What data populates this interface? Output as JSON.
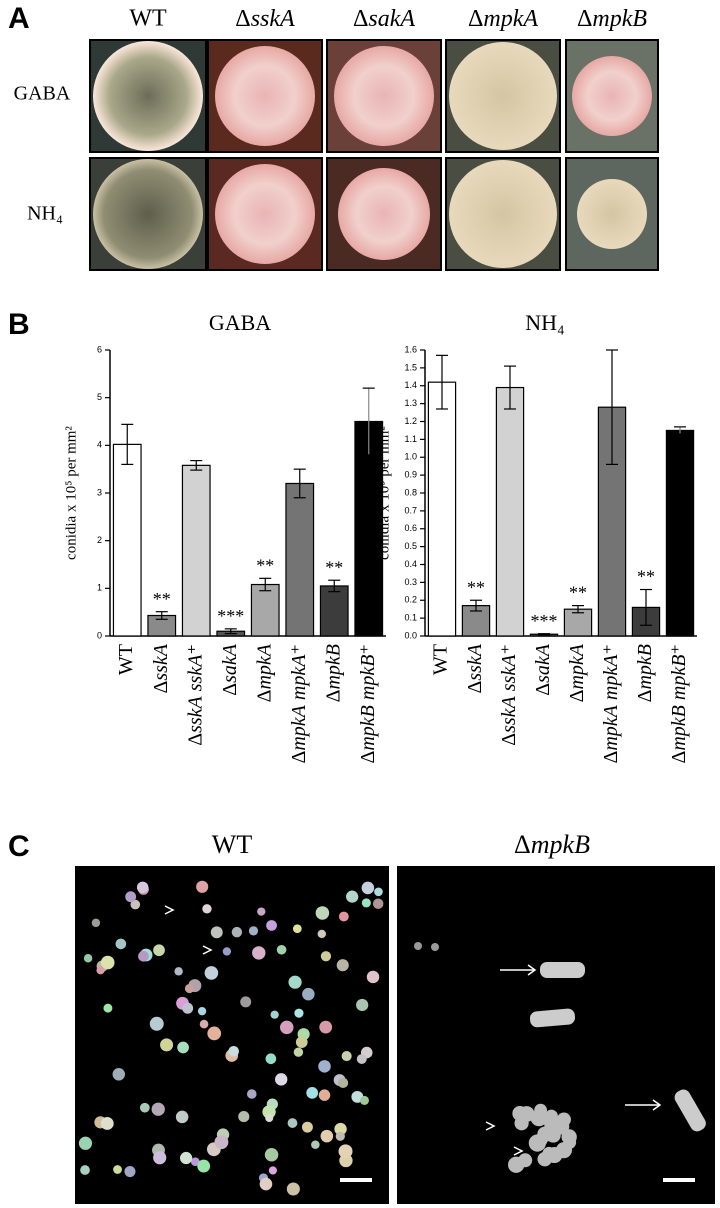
{
  "panel_a": {
    "label": "A",
    "columns": [
      "WT",
      "ΔsskA",
      "ΔsakA",
      "ΔmpkA",
      "ΔmpkB"
    ],
    "rows": [
      "GABA",
      "NH₄"
    ]
  },
  "panel_b": {
    "label": "B"
  },
  "chart_data": [
    {
      "type": "bar",
      "title": "GABA",
      "y_label": "conidia x 10⁵ per mm²",
      "categories": [
        "WT",
        "ΔsskA",
        "ΔsskA sskA⁺",
        "ΔsakA",
        "ΔmpkA",
        "ΔmpkA mpkA⁺",
        "ΔmpkB",
        "ΔmpkB mpkB⁺"
      ],
      "values": [
        4.02,
        0.43,
        3.58,
        0.1,
        1.08,
        3.2,
        1.05,
        4.5
      ],
      "errors": [
        0.42,
        0.08,
        0.1,
        0.05,
        0.13,
        0.3,
        0.12,
        0.7
      ],
      "colors": [
        "#ffffff",
        "#8a8a8a",
        "#d2d2d2",
        "#555555",
        "#a8a8a8",
        "#747474",
        "#3c3c3c",
        "#000000"
      ],
      "annotations": [
        null,
        "**",
        null,
        "***",
        "**",
        null,
        "**",
        null
      ],
      "ylim": [
        0,
        6
      ],
      "yticks": [
        0,
        1,
        2,
        3,
        4,
        5,
        6
      ]
    },
    {
      "type": "bar",
      "title": "NH₄",
      "y_label": "conidia x 10⁵ per mm²",
      "categories": [
        "WT",
        "ΔsskA",
        "ΔsskA sskA⁺",
        "ΔsakA",
        "ΔmpkA",
        "ΔmpkA mpkA⁺",
        "ΔmpkB",
        "ΔmpkB mpkB⁺"
      ],
      "values": [
        1.42,
        0.17,
        1.39,
        0.01,
        0.15,
        1.28,
        0.16,
        1.15
      ],
      "errors": [
        0.15,
        0.03,
        0.12,
        0.003,
        0.02,
        0.32,
        0.1,
        0.02
      ],
      "colors": [
        "#ffffff",
        "#8a8a8a",
        "#d2d2d2",
        "#555555",
        "#a8a8a8",
        "#747474",
        "#3c3c3c",
        "#000000"
      ],
      "annotations": [
        null,
        "**",
        null,
        "***",
        "**",
        null,
        "**",
        null
      ],
      "ylim": [
        0,
        1.6
      ],
      "yticks": [
        {
          "value": 0,
          "label": "0.0"
        },
        0.1,
        0.2,
        0.3,
        0.4,
        0.5,
        0.6,
        0.7,
        0.8,
        0.9,
        {
          "value": 1,
          "label": "1.0"
        },
        1.1,
        1.2,
        1.3,
        1.4,
        1.5,
        1.6
      ]
    }
  ],
  "panel_c": {
    "label": "C",
    "images": [
      "WT",
      "ΔmpkB"
    ]
  }
}
